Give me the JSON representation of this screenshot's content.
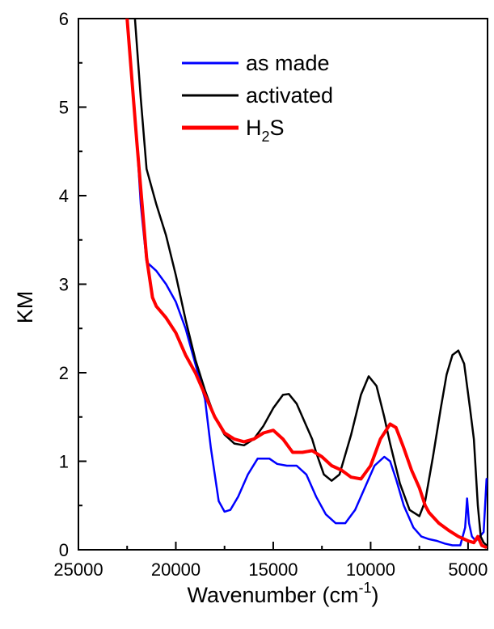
{
  "chart_data": {
    "type": "line",
    "title": "",
    "xlabel": "Wavenumber (cm",
    "xlabel_superscript": "-1",
    "xlabel_suffix": ")",
    "ylabel": "KM",
    "xlim": [
      25000,
      4000
    ],
    "ylim": [
      0,
      6
    ],
    "x_reversed": true,
    "x_ticks": [
      25000,
      20000,
      15000,
      10000,
      5000
    ],
    "x_tick_labels": [
      "25000",
      "20000",
      "15000",
      "10000",
      "5000"
    ],
    "y_ticks": [
      0,
      1,
      2,
      3,
      4,
      5,
      6
    ],
    "y_tick_labels": [
      "0",
      "1",
      "2",
      "3",
      "4",
      "5",
      "6"
    ],
    "grid": false,
    "legend_position": "top-right",
    "series": [
      {
        "name": "as made",
        "color": "#0000ff",
        "x": [
          22500,
          22000,
          21800,
          21500,
          21000,
          20500,
          20000,
          19500,
          19000,
          18500,
          18200,
          17800,
          17500,
          17200,
          16800,
          16300,
          15800,
          15200,
          14800,
          14300,
          13800,
          13300,
          12800,
          12300,
          11800,
          11300,
          10800,
          10300,
          9800,
          9300,
          9000,
          8700,
          8300,
          7800,
          7400,
          7000,
          6600,
          6200,
          5800,
          5400,
          5150,
          5050,
          4950,
          4800,
          4600,
          4400,
          4200,
          4050
        ],
        "values": [
          6.0,
          4.6,
          3.9,
          3.25,
          3.15,
          3.0,
          2.8,
          2.5,
          2.1,
          1.7,
          1.15,
          0.55,
          0.43,
          0.45,
          0.6,
          0.85,
          1.03,
          1.03,
          0.97,
          0.95,
          0.95,
          0.85,
          0.6,
          0.4,
          0.3,
          0.3,
          0.45,
          0.7,
          0.95,
          1.05,
          1.0,
          0.8,
          0.5,
          0.25,
          0.15,
          0.12,
          0.1,
          0.07,
          0.05,
          0.05,
          0.25,
          0.58,
          0.3,
          0.15,
          0.1,
          0.15,
          0.2,
          0.8
        ]
      },
      {
        "name": "activated",
        "color": "#000000",
        "x": [
          22100,
          21800,
          21500,
          21000,
          20500,
          20000,
          19500,
          19000,
          18500,
          18000,
          17500,
          17000,
          16500,
          16000,
          15500,
          15000,
          14500,
          14200,
          13800,
          13300,
          13000,
          12800,
          12400,
          12000,
          11600,
          11000,
          10500,
          10100,
          9700,
          9300,
          9000,
          8500,
          8000,
          7500,
          7200,
          6800,
          6400,
          6100,
          5800,
          5500,
          5200,
          4900,
          4700,
          4500,
          4350,
          4200,
          4050
        ],
        "values": [
          6.0,
          5.1,
          4.3,
          3.9,
          3.55,
          3.1,
          2.6,
          2.15,
          1.8,
          1.5,
          1.3,
          1.2,
          1.18,
          1.25,
          1.4,
          1.6,
          1.75,
          1.76,
          1.65,
          1.4,
          1.25,
          1.1,
          0.85,
          0.78,
          0.85,
          1.3,
          1.75,
          1.96,
          1.85,
          1.5,
          1.2,
          0.75,
          0.45,
          0.38,
          0.55,
          1.05,
          1.6,
          1.98,
          2.2,
          2.25,
          2.1,
          1.6,
          1.25,
          0.5,
          0.15,
          0.08,
          0.05
        ]
      },
      {
        "name": "H2S",
        "color": "#ff0000",
        "x": [
          22500,
          22000,
          21500,
          21200,
          21000,
          20500,
          20000,
          19500,
          19000,
          18500,
          18000,
          17500,
          17000,
          16500,
          16000,
          15500,
          15000,
          14500,
          14000,
          13500,
          13000,
          12500,
          12000,
          11500,
          11000,
          10500,
          10000,
          9500,
          9000,
          8700,
          8300,
          7900,
          7500,
          7200,
          7000,
          6500,
          6000,
          5500,
          5000,
          4700,
          4500,
          4300,
          4100
        ],
        "values": [
          6.0,
          4.6,
          3.3,
          2.85,
          2.75,
          2.62,
          2.45,
          2.2,
          2.0,
          1.75,
          1.5,
          1.32,
          1.25,
          1.22,
          1.25,
          1.32,
          1.35,
          1.25,
          1.1,
          1.1,
          1.12,
          1.05,
          0.95,
          0.9,
          0.82,
          0.8,
          0.95,
          1.25,
          1.42,
          1.38,
          1.15,
          0.9,
          0.7,
          0.5,
          0.42,
          0.3,
          0.22,
          0.15,
          0.1,
          0.08,
          0.15,
          0.05,
          0.03
        ]
      }
    ]
  },
  "legend": {
    "items": [
      {
        "label": "as made",
        "color": "#0000ff"
      },
      {
        "label": "activated",
        "color": "#000000"
      },
      {
        "label_main": "H",
        "label_sub": "2",
        "label_tail": "S",
        "color": "#ff0000"
      }
    ]
  }
}
